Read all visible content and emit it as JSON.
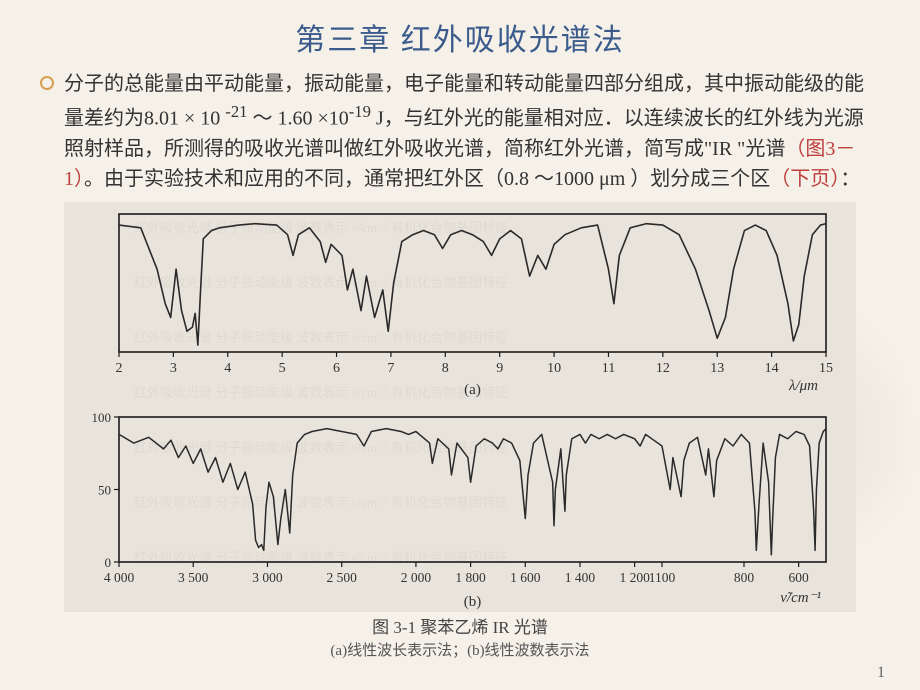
{
  "title": "第三章  红外吸收光谱法",
  "paragraph": {
    "pre": "分子的总能量由平动能量，振动能量，电子能量和转动能量四部分组成，其中振动能级的能量差约为8.01 × 10 ",
    "sup1": "-21",
    "mid1": " ～ 1.60 ×10",
    "sup2": "-19",
    "mid2": " J，与红外光的能量相对应．以连续波长的红外线为光源照射样品，所测得的吸收光谱叫做红外吸收光谱，简称红外光谱，简写成\"IR \"光谱",
    "hl1": "（图3－1）",
    "mid3": "。由于实验技术和应用的不同，通常把红外区（0.8 ～1000 μm ）划分成三个区",
    "hl2": "（下页）",
    "end": "："
  },
  "chart_a": {
    "type": "line",
    "xlim": [
      2,
      15
    ],
    "xticks": [
      2,
      3,
      4,
      5,
      6,
      7,
      8,
      9,
      10,
      11,
      12,
      13,
      14,
      15
    ],
    "xlabel": "λ/μm",
    "panel_label": "(a)",
    "ylim": [
      0,
      100
    ],
    "line_color": "#2a2a2a",
    "bg": "#e8e4dc",
    "points": [
      [
        2.0,
        92
      ],
      [
        2.4,
        90
      ],
      [
        2.7,
        60
      ],
      [
        2.85,
        35
      ],
      [
        2.95,
        25
      ],
      [
        3.05,
        60
      ],
      [
        3.15,
        30
      ],
      [
        3.25,
        15
      ],
      [
        3.35,
        18
      ],
      [
        3.4,
        28
      ],
      [
        3.45,
        5
      ],
      [
        3.5,
        45
      ],
      [
        3.55,
        82
      ],
      [
        3.7,
        88
      ],
      [
        3.85,
        90
      ],
      [
        4.2,
        92
      ],
      [
        4.5,
        93
      ],
      [
        4.9,
        92
      ],
      [
        5.1,
        85
      ],
      [
        5.2,
        70
      ],
      [
        5.3,
        85
      ],
      [
        5.5,
        90
      ],
      [
        5.7,
        80
      ],
      [
        5.8,
        65
      ],
      [
        5.9,
        78
      ],
      [
        6.1,
        70
      ],
      [
        6.2,
        45
      ],
      [
        6.3,
        60
      ],
      [
        6.45,
        30
      ],
      [
        6.55,
        55
      ],
      [
        6.7,
        25
      ],
      [
        6.85,
        45
      ],
      [
        6.95,
        15
      ],
      [
        7.05,
        50
      ],
      [
        7.2,
        80
      ],
      [
        7.4,
        85
      ],
      [
        7.6,
        88
      ],
      [
        7.8,
        85
      ],
      [
        7.95,
        75
      ],
      [
        8.1,
        85
      ],
      [
        8.3,
        88
      ],
      [
        8.5,
        85
      ],
      [
        8.7,
        80
      ],
      [
        8.85,
        70
      ],
      [
        9.0,
        82
      ],
      [
        9.2,
        88
      ],
      [
        9.4,
        82
      ],
      [
        9.55,
        55
      ],
      [
        9.7,
        70
      ],
      [
        9.85,
        60
      ],
      [
        10.0,
        78
      ],
      [
        10.2,
        85
      ],
      [
        10.5,
        90
      ],
      [
        10.8,
        92
      ],
      [
        11.0,
        60
      ],
      [
        11.1,
        35
      ],
      [
        11.2,
        70
      ],
      [
        11.4,
        90
      ],
      [
        11.7,
        93
      ],
      [
        12.0,
        92
      ],
      [
        12.3,
        85
      ],
      [
        12.6,
        60
      ],
      [
        12.85,
        30
      ],
      [
        13.0,
        10
      ],
      [
        13.15,
        25
      ],
      [
        13.3,
        60
      ],
      [
        13.5,
        88
      ],
      [
        13.7,
        92
      ],
      [
        13.9,
        88
      ],
      [
        14.1,
        70
      ],
      [
        14.3,
        35
      ],
      [
        14.4,
        8
      ],
      [
        14.5,
        20
      ],
      [
        14.6,
        55
      ],
      [
        14.75,
        85
      ],
      [
        14.9,
        92
      ],
      [
        15.0,
        93
      ]
    ]
  },
  "chart_b": {
    "type": "line",
    "xlim_left": [
      4000,
      2000
    ],
    "xticks_left": [
      4000,
      3500,
      3000,
      2500,
      2000
    ],
    "xlim_right": [
      2000,
      500
    ],
    "xticks_right": [
      1800,
      1600,
      1400,
      1200,
      1100,
      800,
      600
    ],
    "xlabel": "ν̃/cm⁻¹",
    "panel_label": "(b)",
    "ylim": [
      0,
      100
    ],
    "yticks": [
      0,
      50,
      100
    ],
    "line_color": "#2a2a2a",
    "bg": "#e8e4dc",
    "points": [
      [
        4000,
        88
      ],
      [
        3900,
        82
      ],
      [
        3800,
        86
      ],
      [
        3700,
        78
      ],
      [
        3650,
        84
      ],
      [
        3600,
        72
      ],
      [
        3550,
        80
      ],
      [
        3500,
        68
      ],
      [
        3450,
        78
      ],
      [
        3400,
        62
      ],
      [
        3350,
        72
      ],
      [
        3300,
        55
      ],
      [
        3250,
        68
      ],
      [
        3200,
        50
      ],
      [
        3150,
        62
      ],
      [
        3100,
        40
      ],
      [
        3080,
        15
      ],
      [
        3060,
        10
      ],
      [
        3040,
        12
      ],
      [
        3025,
        8
      ],
      [
        3010,
        38
      ],
      [
        2990,
        55
      ],
      [
        2960,
        45
      ],
      [
        2930,
        12
      ],
      [
        2910,
        30
      ],
      [
        2880,
        50
      ],
      [
        2850,
        20
      ],
      [
        2830,
        60
      ],
      [
        2800,
        82
      ],
      [
        2750,
        88
      ],
      [
        2700,
        90
      ],
      [
        2600,
        92
      ],
      [
        2500,
        90
      ],
      [
        2400,
        88
      ],
      [
        2350,
        80
      ],
      [
        2300,
        90
      ],
      [
        2200,
        92
      ],
      [
        2100,
        90
      ],
      [
        2050,
        88
      ],
      [
        2000,
        90
      ],
      [
        1950,
        82
      ],
      [
        1940,
        68
      ],
      [
        1920,
        85
      ],
      [
        1880,
        78
      ],
      [
        1870,
        60
      ],
      [
        1850,
        82
      ],
      [
        1810,
        72
      ],
      [
        1800,
        55
      ],
      [
        1780,
        80
      ],
      [
        1750,
        85
      ],
      [
        1720,
        82
      ],
      [
        1700,
        78
      ],
      [
        1680,
        85
      ],
      [
        1650,
        82
      ],
      [
        1620,
        70
      ],
      [
        1600,
        30
      ],
      [
        1590,
        60
      ],
      [
        1570,
        82
      ],
      [
        1540,
        88
      ],
      [
        1500,
        55
      ],
      [
        1495,
        25
      ],
      [
        1490,
        50
      ],
      [
        1470,
        78
      ],
      [
        1455,
        35
      ],
      [
        1450,
        60
      ],
      [
        1430,
        85
      ],
      [
        1400,
        88
      ],
      [
        1380,
        82
      ],
      [
        1360,
        88
      ],
      [
        1330,
        85
      ],
      [
        1300,
        88
      ],
      [
        1270,
        85
      ],
      [
        1240,
        88
      ],
      [
        1200,
        85
      ],
      [
        1180,
        80
      ],
      [
        1160,
        88
      ],
      [
        1130,
        84
      ],
      [
        1100,
        80
      ],
      [
        1070,
        50
      ],
      [
        1060,
        72
      ],
      [
        1030,
        45
      ],
      [
        1020,
        70
      ],
      [
        1000,
        82
      ],
      [
        970,
        86
      ],
      [
        940,
        60
      ],
      [
        930,
        78
      ],
      [
        910,
        45
      ],
      [
        900,
        70
      ],
      [
        870,
        85
      ],
      [
        840,
        80
      ],
      [
        810,
        88
      ],
      [
        780,
        82
      ],
      [
        760,
        35
      ],
      [
        755,
        8
      ],
      [
        745,
        40
      ],
      [
        730,
        82
      ],
      [
        710,
        55
      ],
      [
        700,
        5
      ],
      [
        695,
        30
      ],
      [
        685,
        72
      ],
      [
        670,
        88
      ],
      [
        640,
        85
      ],
      [
        610,
        90
      ],
      [
        580,
        88
      ],
      [
        560,
        80
      ],
      [
        545,
        35
      ],
      [
        540,
        8
      ],
      [
        535,
        50
      ],
      [
        525,
        82
      ],
      [
        510,
        90
      ],
      [
        500,
        92
      ]
    ]
  },
  "caption_main": "图 3-1  聚苯乙烯 IR 光谱",
  "caption_sub": "(a)线性波长表示法；(b)线性波数表示法",
  "page_number": "1",
  "colors": {
    "title": "#3b5b8c",
    "highlight": "#c04040",
    "body": "#333333",
    "page_bg": "#f5f0e8",
    "chart_bg": "#e8e4dc",
    "chart_line": "#2a2a2a",
    "chart_frame": "#1a1a1a"
  }
}
